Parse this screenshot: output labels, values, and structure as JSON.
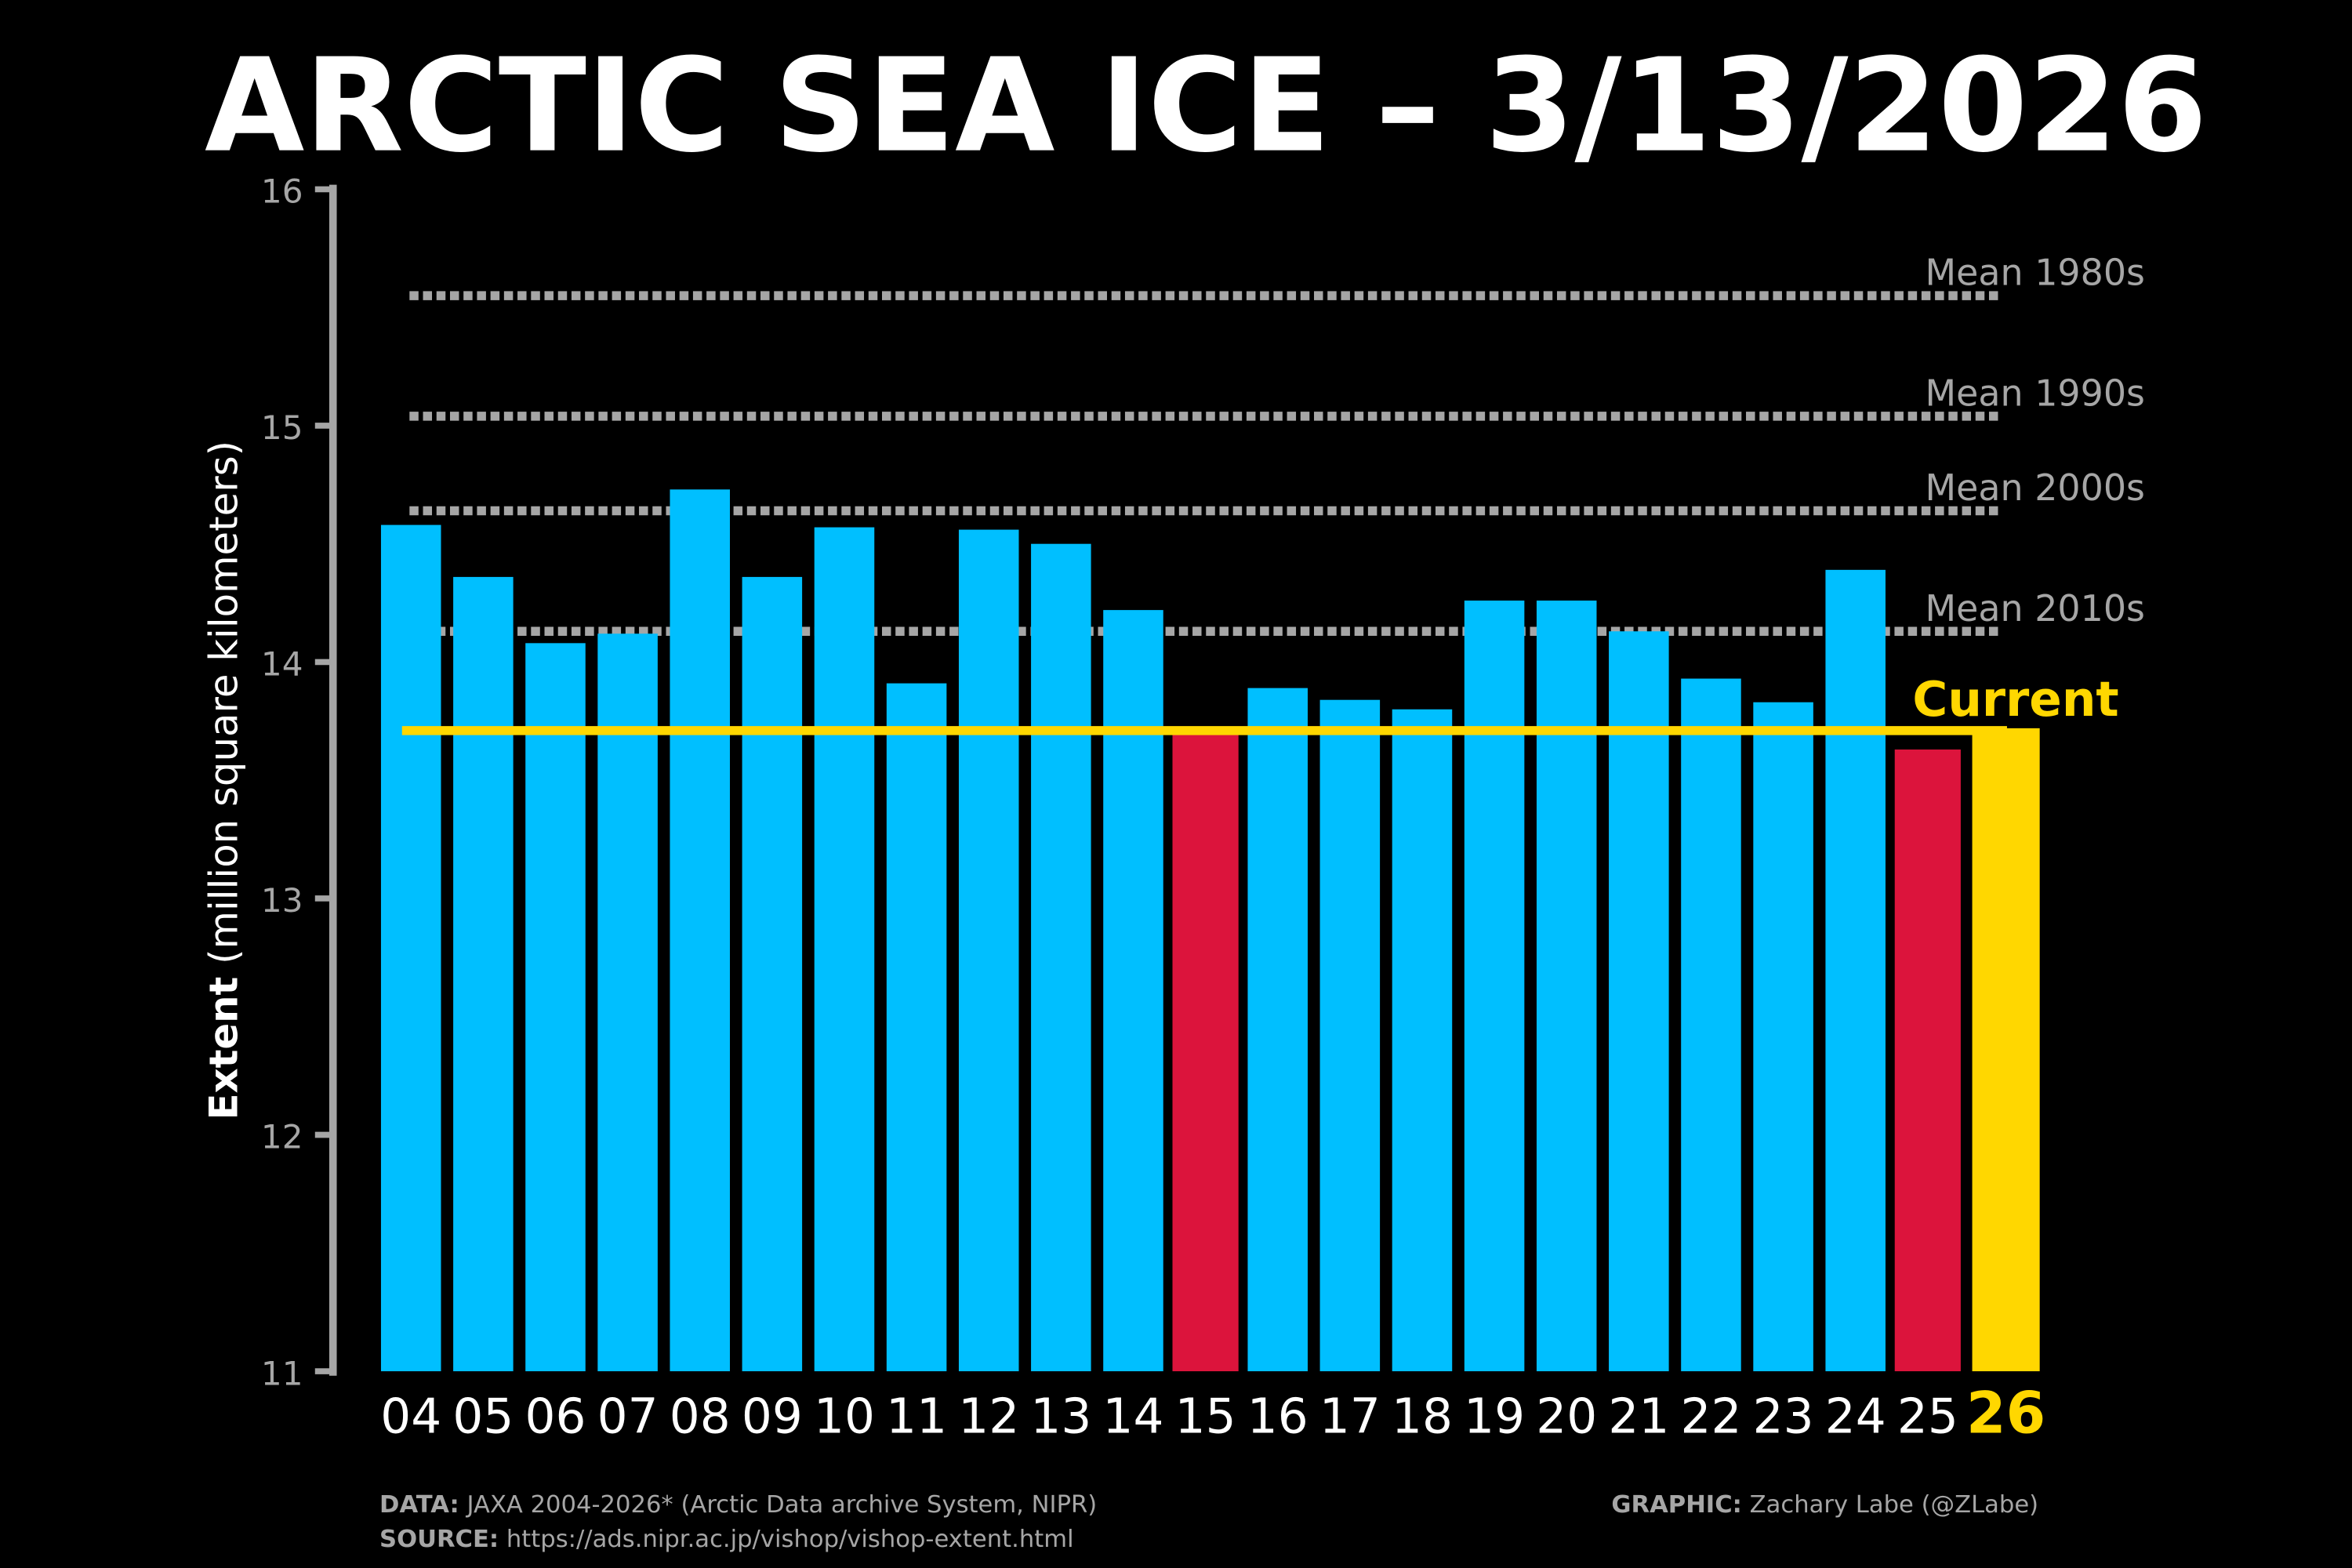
{
  "chart_data": {
    "type": "bar",
    "title": "ARCTIC SEA ICE – 3/13/2026",
    "ylabel_bold": "Extent",
    "ylabel_rest": "(million square kilometers)",
    "xlabel": "",
    "ylim": [
      11,
      16
    ],
    "yticks": [
      "11",
      "12",
      "13",
      "14",
      "15",
      "16"
    ],
    "categories": [
      "04",
      "05",
      "06",
      "07",
      "08",
      "09",
      "10",
      "11",
      "12",
      "13",
      "14",
      "15",
      "16",
      "17",
      "18",
      "19",
      "20",
      "21",
      "22",
      "23",
      "24",
      "25",
      "26"
    ],
    "values": [
      14.58,
      14.36,
      14.08,
      14.12,
      14.73,
      14.36,
      14.57,
      13.91,
      14.56,
      14.5,
      14.22,
      13.7,
      13.89,
      13.84,
      13.8,
      14.26,
      14.26,
      14.13,
      13.93,
      13.83,
      14.39,
      13.63,
      13.72
    ],
    "bar_kinds": [
      "normal",
      "normal",
      "normal",
      "normal",
      "normal",
      "normal",
      "normal",
      "normal",
      "normal",
      "normal",
      "normal",
      "low",
      "normal",
      "normal",
      "normal",
      "normal",
      "normal",
      "normal",
      "normal",
      "normal",
      "normal",
      "low",
      "current"
    ],
    "reference_lines": [
      {
        "label": "Mean 1980s",
        "value": 15.55
      },
      {
        "label": "Mean 1990s",
        "value": 15.04
      },
      {
        "label": "Mean 2000s",
        "value": 14.64
      },
      {
        "label": "Mean 2010s",
        "value": 14.13
      }
    ],
    "current_line": {
      "label": "Current",
      "value": 13.71
    },
    "grid": false,
    "colors": {
      "normal": "#00BFFF",
      "low": "#DC143C",
      "current": "#FFD700",
      "reference": "#A6A6A6",
      "axis": "#A6A6A6"
    }
  },
  "footer": {
    "data_label": "DATA:",
    "data_text": "JAXA 2004-2026* (Arctic Data archive System, NIPR)",
    "source_label": "SOURCE:",
    "source_text": "https://ads.nipr.ac.jp/vishop/vishop-extent.html",
    "graphic_label": "GRAPHIC:",
    "graphic_text": "Zachary Labe (@ZLabe)"
  }
}
